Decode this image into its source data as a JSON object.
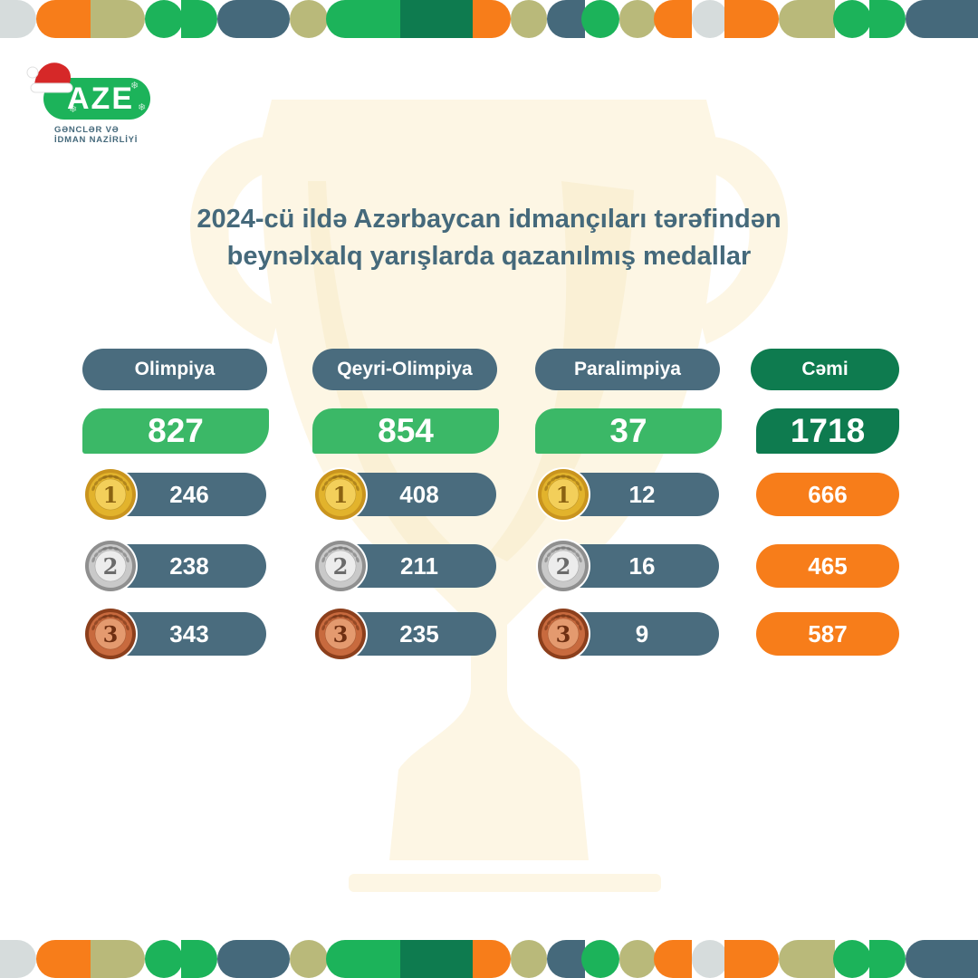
{
  "brand": {
    "logo_text": "AZE",
    "ministry_line1": "GƏNCLƏR VƏ",
    "ministry_line2": "İDMAN NAZİRLİYİ"
  },
  "title": {
    "line1": "2024-cü ildə Azərbaycan idmançıları tərəfindən",
    "line2": "beynəlxalq yarışlarda qazanılmış medallar"
  },
  "colors": {
    "slate": "#4a6c7e",
    "green": "#3bb867",
    "dark_green": "#0e7b4f",
    "orange": "#f77d1a",
    "olive": "#b9b97a",
    "light_gray": "#d6dcdc",
    "gold": "#e2b32c",
    "silver": "#c9c9c9",
    "bronze": "#c86a3e"
  },
  "columns": [
    {
      "heading": "Olimpiya",
      "total": "827",
      "gold": "246",
      "silver": "238",
      "bronze": "343"
    },
    {
      "heading": "Qeyri-Olimpiya",
      "total": "854",
      "gold": "408",
      "silver": "211",
      "bronze": "235"
    },
    {
      "heading": "Paralimpiya",
      "total": "37",
      "gold": "12",
      "silver": "16",
      "bronze": "9"
    }
  ],
  "summary": {
    "heading": "Cəmi",
    "total": "1718",
    "gold": "666",
    "silver": "465",
    "bronze": "587"
  },
  "medals": {
    "gold_number": "1",
    "silver_number": "2",
    "bronze_number": "3"
  }
}
